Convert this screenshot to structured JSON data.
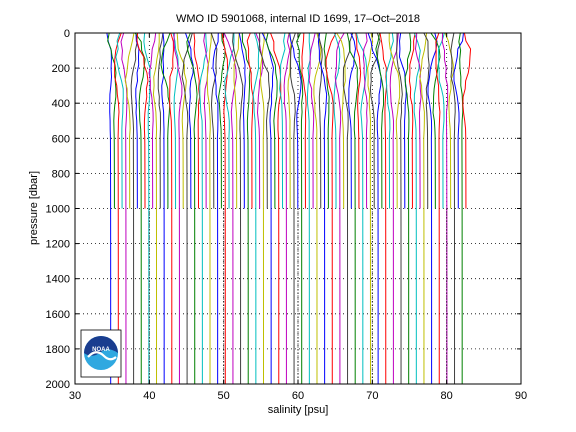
{
  "chart_data": {
    "type": "line",
    "title": "WMO ID 5901068, internal ID 1699, 17–Oct–2018",
    "xlabel": "salinity [psu]",
    "ylabel": "pressure [dbar]",
    "xlim": [
      30,
      90
    ],
    "ylim": [
      0,
      2000
    ],
    "y_reversed": true,
    "x_ticks": [
      30,
      40,
      50,
      60,
      70,
      80,
      90
    ],
    "y_ticks": [
      0,
      200,
      400,
      600,
      800,
      1000,
      1200,
      1400,
      1600,
      1800,
      2000
    ],
    "grid": "dotted",
    "profiles": {
      "count": 94,
      "first_offset_x": 34.8,
      "last_offset_x": 82.6,
      "shallow_depth_limit": 1000,
      "deep_depth_limit": 2000,
      "series_colors": [
        "#0000ff",
        "#008000",
        "#ff0000",
        "#00bfbf",
        "#bf00bf",
        "#bfbf00",
        "#404040"
      ]
    },
    "dotted_markers_x": [
      40,
      50,
      60,
      70,
      80
    ]
  },
  "logo": {
    "text": "NOAA",
    "colors": {
      "dark": "#1a3d8f",
      "light": "#2fa8e0",
      "white": "#ffffff"
    }
  }
}
